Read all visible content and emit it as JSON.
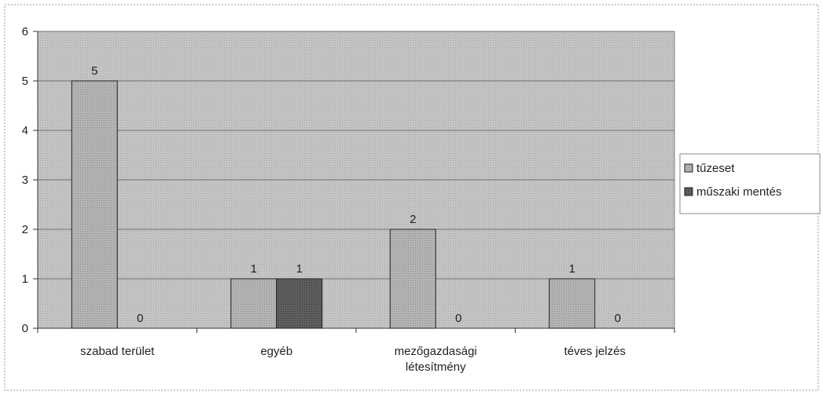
{
  "chart_data": {
    "type": "bar",
    "categories": [
      [
        "szabad terület"
      ],
      [
        "egyéb"
      ],
      [
        "mezőgazdasági",
        "létesítmény"
      ],
      [
        "téves jelzés"
      ]
    ],
    "series": [
      {
        "name": "tűzeset",
        "values": [
          5,
          1,
          2,
          1
        ],
        "color": "#a9a9a9"
      },
      {
        "name": "műszaki mentés",
        "values": [
          0,
          1,
          0,
          0
        ],
        "color": "#555555"
      }
    ],
    "ylim": [
      0,
      6
    ],
    "yticks": [
      0,
      1,
      2,
      3,
      4,
      5,
      6
    ],
    "grid": true,
    "legend": "right",
    "data_labels": true,
    "plot_background": "#bdbdbd"
  }
}
